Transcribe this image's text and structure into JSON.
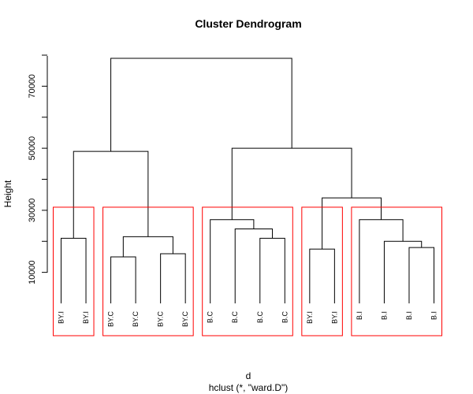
{
  "chart_data": {
    "type": "dendrogram",
    "title": "Cluster Dendrogram",
    "xlabel": "d",
    "subtitle": "hclust (*, \"ward.D\")",
    "ylabel": "Height",
    "ylim": [
      0,
      80000
    ],
    "y_ticks": [
      10000,
      20000,
      30000,
      40000,
      50000,
      60000,
      70000,
      80000
    ],
    "y_tick_labels": [
      "10000",
      "",
      "30000",
      "",
      "50000",
      "",
      "70000",
      ""
    ],
    "leaves": [
      "BY.I",
      "BY.I",
      "BY.C",
      "BY.C",
      "BY.C",
      "BY.C",
      "B.C",
      "B.C",
      "B.C",
      "B.C",
      "BY.I",
      "BY.I",
      "B.I",
      "B.I",
      "B.I",
      "B.I"
    ],
    "merges": [
      {
        "left": "L0",
        "right": "L1",
        "height": 21000
      },
      {
        "left": "L2",
        "right": "L3",
        "height": 15000
      },
      {
        "left": "L4",
        "right": "L5",
        "height": 16000
      },
      {
        "left": "M1",
        "right": "M2",
        "height": 21500
      },
      {
        "left": "M0",
        "right": "M3",
        "height": 49000
      },
      {
        "left": "L8",
        "right": "L9",
        "height": 21000
      },
      {
        "left": "L7",
        "right": "M5",
        "height": 24000
      },
      {
        "left": "L6",
        "right": "M6",
        "height": 27000
      },
      {
        "left": "L10",
        "right": "L11",
        "height": 17500
      },
      {
        "left": "L14",
        "right": "L15",
        "height": 18000
      },
      {
        "left": "L13",
        "right": "M9",
        "height": 20000
      },
      {
        "left": "L12",
        "right": "M10",
        "height": 27000
      },
      {
        "left": "M8",
        "right": "M11",
        "height": 34000
      },
      {
        "left": "M7",
        "right": "M12",
        "height": 50000
      },
      {
        "left": "M4",
        "right": "M13",
        "height": 79000
      }
    ],
    "cluster_boxes": [
      {
        "from": 0,
        "to": 1
      },
      {
        "from": 2,
        "to": 5
      },
      {
        "from": 6,
        "to": 9
      },
      {
        "from": 10,
        "to": 11
      },
      {
        "from": 12,
        "to": 15
      }
    ],
    "cut_height": 31000,
    "colors": {
      "tree": "#000000",
      "box": "#ff0000"
    }
  }
}
